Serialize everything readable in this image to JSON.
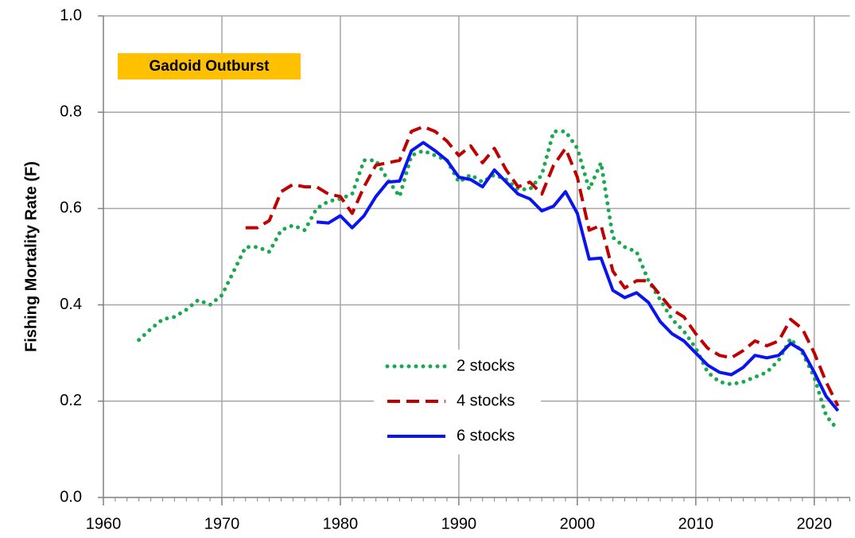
{
  "chart_data": {
    "type": "line",
    "ylabel": "Fishing Mortality Rate (F)",
    "annotation": "Gadoid Outburst",
    "x": [
      1963,
      1964,
      1965,
      1966,
      1967,
      1968,
      1969,
      1970,
      1971,
      1972,
      1973,
      1974,
      1975,
      1976,
      1977,
      1978,
      1979,
      1980,
      1981,
      1982,
      1983,
      1984,
      1985,
      1986,
      1987,
      1988,
      1989,
      1990,
      1991,
      1992,
      1993,
      1994,
      1995,
      1996,
      1997,
      1998,
      1999,
      2000,
      2001,
      2002,
      2003,
      2004,
      2005,
      2006,
      2007,
      2008,
      2009,
      2010,
      2011,
      2012,
      2013,
      2014,
      2015,
      2016,
      2017,
      2018,
      2019,
      2020,
      2021,
      2022
    ],
    "series": [
      {
        "name": "2 stocks",
        "color": "#1aa850",
        "style": "dotted",
        "values": [
          0.327,
          0.35,
          0.37,
          0.375,
          0.39,
          0.41,
          0.4,
          0.42,
          0.47,
          0.52,
          0.52,
          0.51,
          0.555,
          0.565,
          0.555,
          0.6,
          0.615,
          0.62,
          0.63,
          0.7,
          0.7,
          0.66,
          0.625,
          0.71,
          0.72,
          0.71,
          0.7,
          0.655,
          0.67,
          0.655,
          0.67,
          0.66,
          0.64,
          0.64,
          0.67,
          0.76,
          0.76,
          0.725,
          0.64,
          0.695,
          0.54,
          0.52,
          0.51,
          0.45,
          0.41,
          0.37,
          0.345,
          0.31,
          0.26,
          0.24,
          0.235,
          0.24,
          0.25,
          0.26,
          0.285,
          0.33,
          0.3,
          0.25,
          0.17,
          0.14
        ]
      },
      {
        "name": "4 stocks",
        "color": "#c00000",
        "style": "dashed",
        "values": [
          null,
          null,
          null,
          null,
          null,
          null,
          null,
          null,
          null,
          0.56,
          0.56,
          0.575,
          0.635,
          0.65,
          0.645,
          0.645,
          0.63,
          0.625,
          0.59,
          0.645,
          0.69,
          0.695,
          0.7,
          0.76,
          0.77,
          0.76,
          0.74,
          0.71,
          0.73,
          0.695,
          0.725,
          0.68,
          0.645,
          0.655,
          0.63,
          0.69,
          0.725,
          0.665,
          0.555,
          0.565,
          0.47,
          0.435,
          0.45,
          0.45,
          0.42,
          0.39,
          0.375,
          0.34,
          0.31,
          0.295,
          0.29,
          0.305,
          0.325,
          0.315,
          0.325,
          0.37,
          0.35,
          0.3,
          0.24,
          0.19
        ]
      },
      {
        "name": "6 stocks",
        "color": "#0a14f0",
        "style": "solid",
        "values": [
          null,
          null,
          null,
          null,
          null,
          null,
          null,
          null,
          null,
          null,
          null,
          null,
          null,
          null,
          null,
          0.572,
          0.57,
          0.585,
          0.56,
          0.585,
          0.625,
          0.655,
          0.657,
          0.72,
          0.737,
          0.72,
          0.7,
          0.665,
          0.66,
          0.645,
          0.68,
          0.655,
          0.63,
          0.62,
          0.595,
          0.605,
          0.635,
          0.59,
          0.495,
          0.497,
          0.43,
          0.415,
          0.425,
          0.405,
          0.365,
          0.34,
          0.325,
          0.3,
          0.275,
          0.26,
          0.255,
          0.27,
          0.295,
          0.29,
          0.295,
          0.32,
          0.305,
          0.26,
          0.21,
          0.18
        ]
      }
    ],
    "xlim": [
      1960,
      2023
    ],
    "xticks": [
      1960,
      1970,
      1980,
      1990,
      2000,
      2010,
      2020
    ],
    "ylim": [
      0,
      1
    ],
    "yticks": [
      {
        "value": 0,
        "label": "0.0"
      },
      {
        "value": 0.2,
        "label": "0.2"
      },
      {
        "value": 0.4,
        "label": "0.4"
      },
      {
        "value": 0.6,
        "label": "0.6"
      },
      {
        "value": 0.8,
        "label": "0.8"
      },
      {
        "value": 1,
        "label": "1.0"
      }
    ],
    "grid": true
  }
}
